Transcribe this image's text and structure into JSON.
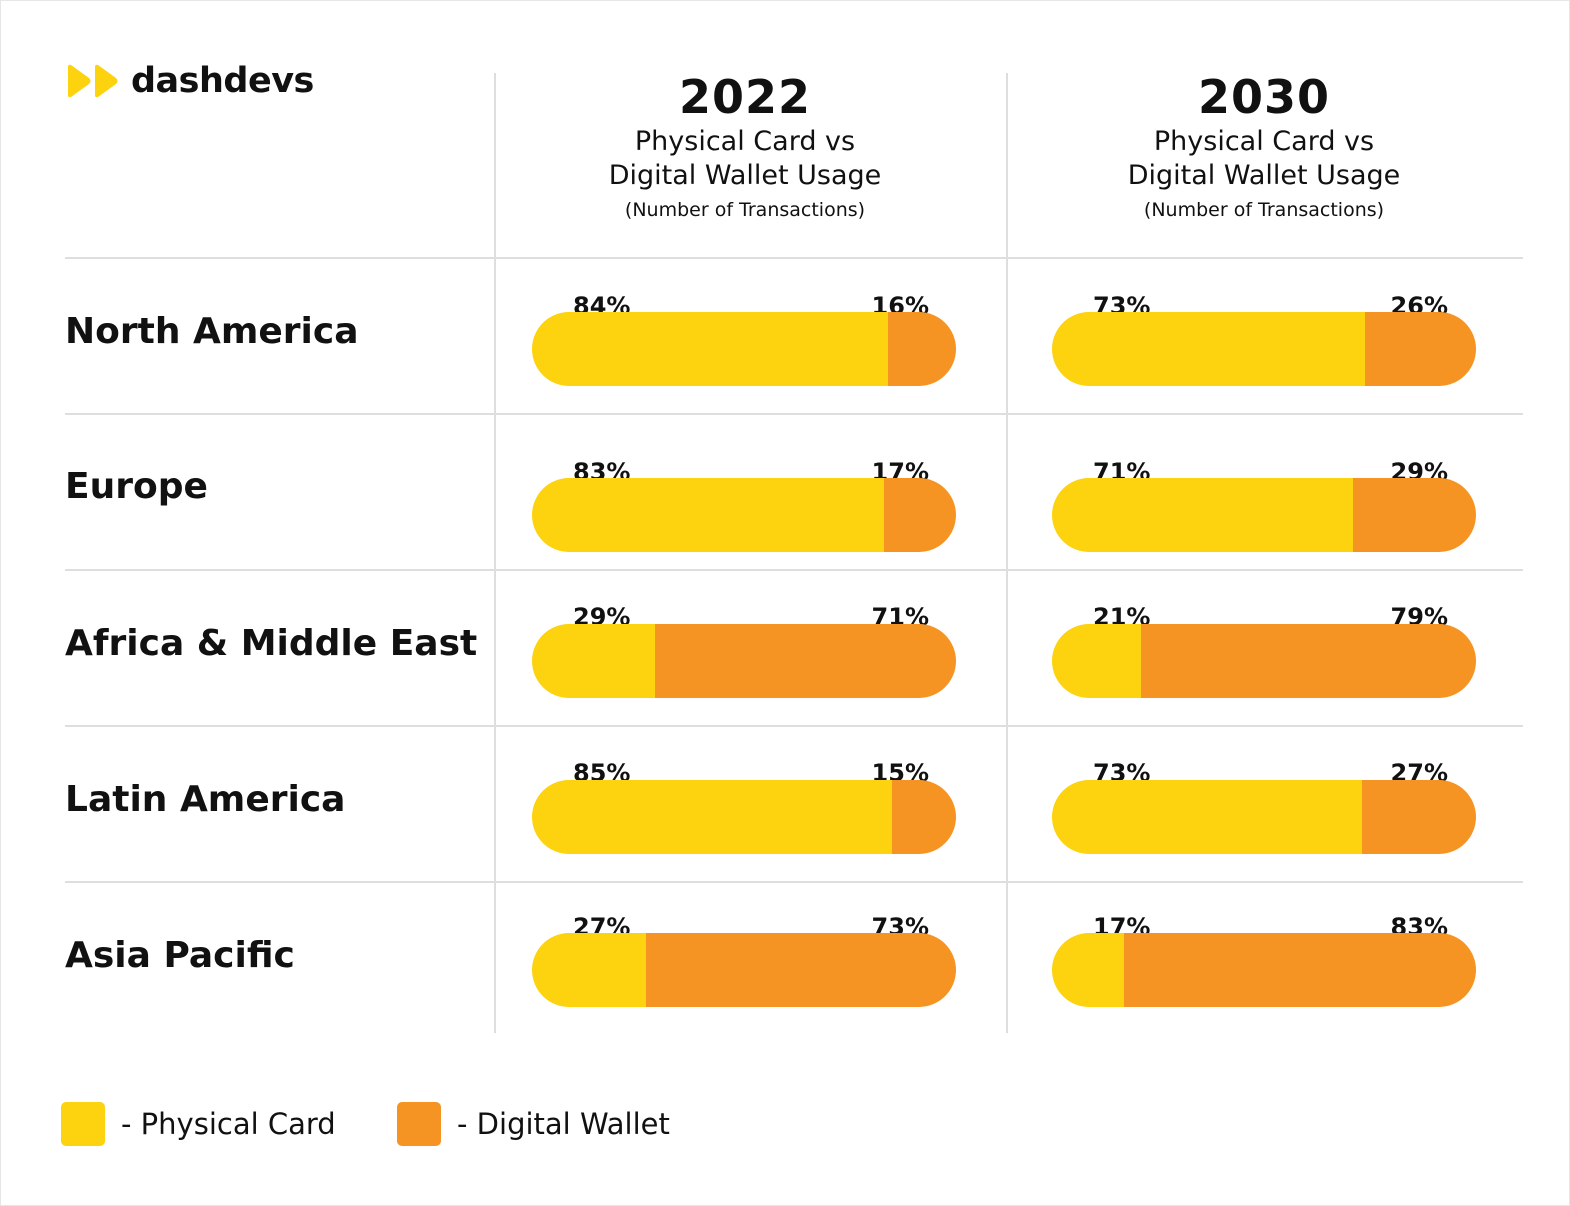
{
  "brand": {
    "name": "dashdevs",
    "icon": "double-play-icon",
    "color": "#fdd20e"
  },
  "colors": {
    "physical": "#fdd20e",
    "digital": "#f59423"
  },
  "columns": [
    {
      "year": "2022",
      "subtitle_line1": "Physical Card vs",
      "subtitle_line2": "Digital Wallet Usage",
      "note": "(Number of Transactions)"
    },
    {
      "year": "2030",
      "subtitle_line1": "Physical Card vs",
      "subtitle_line2": "Digital Wallet Usage",
      "note": "(Number of Transactions)"
    }
  ],
  "legend": [
    {
      "label": "- Physical Card"
    },
    {
      "label": "- Digital Wallet"
    }
  ],
  "chart_data": {
    "type": "bar",
    "stacked": true,
    "orientation": "horizontal",
    "categories": [
      "North America",
      "Europe",
      "Africa & Middle East",
      "Latin America",
      "Asia Pacific"
    ],
    "series": [
      {
        "name": "Physical Card",
        "values_2022": [
          84,
          83,
          29,
          85,
          27
        ],
        "values_2030": [
          73,
          71,
          21,
          73,
          17
        ]
      },
      {
        "name": "Digital Wallet",
        "values_2022": [
          16,
          17,
          71,
          15,
          73
        ],
        "values_2030": [
          26,
          29,
          79,
          27,
          83
        ]
      }
    ],
    "rows": [
      {
        "region": "North America",
        "y2022": {
          "physical": 84,
          "digital": 16,
          "physical_label": "84%",
          "digital_label": "16%"
        },
        "y2030": {
          "physical": 73,
          "digital": 26,
          "physical_label": "73%",
          "digital_label": "26%"
        }
      },
      {
        "region": "Europe",
        "y2022": {
          "physical": 83,
          "digital": 17,
          "physical_label": "83%",
          "digital_label": "17%"
        },
        "y2030": {
          "physical": 71,
          "digital": 29,
          "physical_label": "71%",
          "digital_label": "29%"
        }
      },
      {
        "region": "Africa & Middle East",
        "y2022": {
          "physical": 29,
          "digital": 71,
          "physical_label": "29%",
          "digital_label": "71%"
        },
        "y2030": {
          "physical": 21,
          "digital": 79,
          "physical_label": "21%",
          "digital_label": "79%"
        }
      },
      {
        "region": "Latin America",
        "y2022": {
          "physical": 85,
          "digital": 15,
          "physical_label": "85%",
          "digital_label": "15%"
        },
        "y2030": {
          "physical": 73,
          "digital": 27,
          "physical_label": "73%",
          "digital_label": "27%"
        }
      },
      {
        "region": "Asia Pacific",
        "y2022": {
          "physical": 27,
          "digital": 73,
          "physical_label": "27%",
          "digital_label": "73%"
        },
        "y2030": {
          "physical": 17,
          "digital": 83,
          "physical_label": "17%",
          "digital_label": "83%"
        }
      }
    ],
    "unit": "%",
    "grid": true,
    "legend_position": "bottom-left"
  }
}
